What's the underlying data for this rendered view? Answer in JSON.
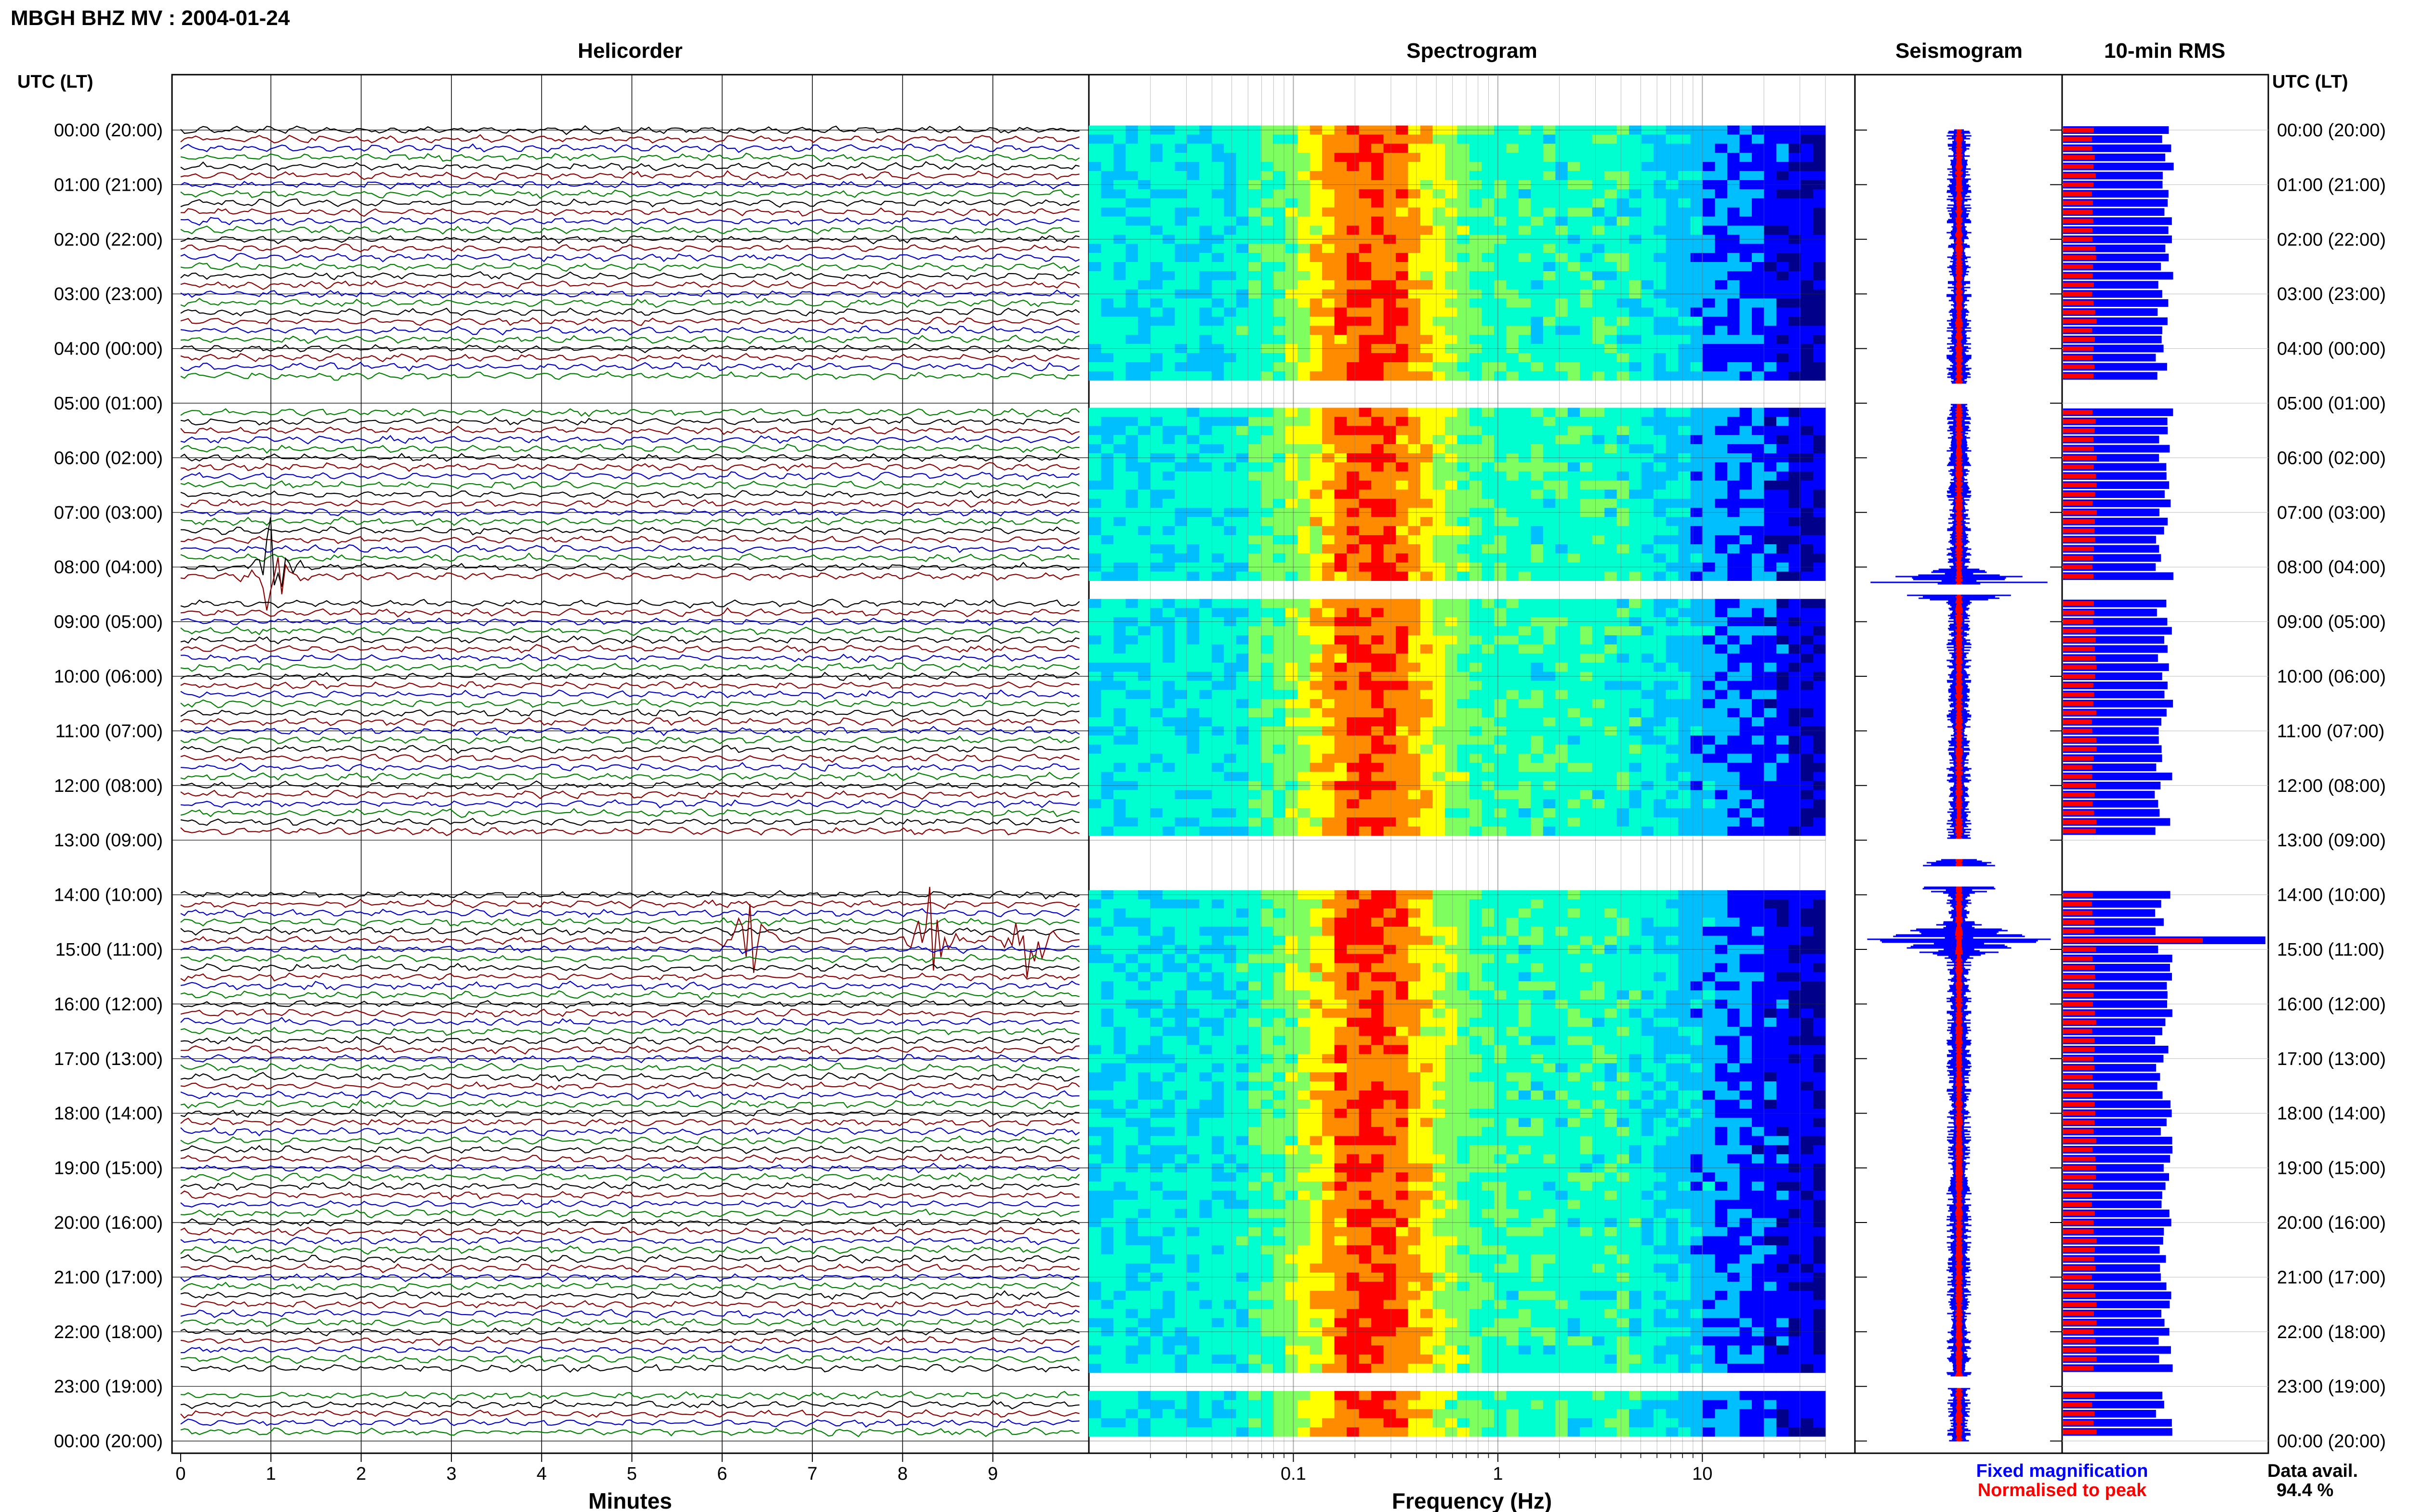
{
  "header": {
    "title": "MBGH BHZ MV : 2004-01-24",
    "utc_label_left": "UTC (LT)",
    "utc_label_right": "UTC (LT)"
  },
  "panels": {
    "helicorder": "Helicorder",
    "spectrogram": "Spectrogram",
    "seismogram": "Seismogram",
    "rms": "10-min RMS"
  },
  "legend": {
    "fixed": "Fixed magnification",
    "normalised": "Normalised to peak",
    "fixed_color": "#0000ff",
    "normalised_color": "#ff0000",
    "data_avail_label": "Data avail.",
    "data_avail_value": "94.4 %"
  },
  "chart_data": [
    {
      "type": "line",
      "title": "Helicorder",
      "xlabel": "Minutes",
      "ylabel": "UTC (LT)",
      "xlim": [
        0,
        10
      ],
      "x_ticks": [
        "0",
        "1",
        "2",
        "3",
        "4",
        "5",
        "6",
        "7",
        "8",
        "9"
      ],
      "y_ticks": [
        "00:00 (20:00)",
        "01:00 (21:00)",
        "02:00 (22:00)",
        "03:00 (23:00)",
        "04:00 (00:00)",
        "05:00 (01:00)",
        "06:00 (02:00)",
        "07:00 (03:00)",
        "08:00 (04:00)",
        "09:00 (05:00)",
        "10:00 (06:00)",
        "11:00 (07:00)",
        "12:00 (08:00)",
        "13:00 (09:00)",
        "14:00 (10:00)",
        "15:00 (11:00)",
        "16:00 (12:00)",
        "17:00 (13:00)",
        "18:00 (14:00)",
        "19:00 (15:00)",
        "20:00 (16:00)",
        "21:00 (17:00)",
        "22:00 (18:00)",
        "23:00 (19:00)",
        "00:00 (20:00)"
      ],
      "trace_colors": [
        "#000000",
        "#8b0000",
        "#0000cd",
        "#008000"
      ],
      "hours_span": 24,
      "trace_interval_minutes": 10,
      "grid": true,
      "data_gaps_utc": [
        [
          "04:40",
          "05:00"
        ],
        [
          "08:20",
          "08:30"
        ],
        [
          "13:00",
          "13:20"
        ],
        [
          "13:30",
          "13:50"
        ],
        [
          "22:50",
          "23:00"
        ]
      ],
      "events": [
        {
          "time_utc": "08:05",
          "minute": 1.0,
          "description": "large signal"
        },
        {
          "time_utc": "14:50",
          "minute": 6.3,
          "description": "large signal"
        },
        {
          "time_utc": "14:50",
          "minute": 8.3,
          "description": "large signal"
        },
        {
          "time_utc": "14:50",
          "minute": 9.4,
          "description": "burst"
        }
      ]
    },
    {
      "type": "heatmap",
      "title": "Spectrogram",
      "xlabel": "Frequency (Hz)",
      "x_scale": "log",
      "xlim": [
        0.01,
        50
      ],
      "x_ticks": [
        "0.1",
        "1",
        "10"
      ],
      "peak_band_hz": [
        0.15,
        0.4
      ],
      "colormap": [
        "#00008b",
        "#0000ff",
        "#00bfff",
        "#00ffd0",
        "#7fff5f",
        "#ffff00",
        "#ff8c00",
        "#ff0000"
      ]
    },
    {
      "type": "line",
      "title": "Seismogram",
      "note": "Fixed magnification (blue) and normalised to peak (red)",
      "peaks_utc": [
        "08:20",
        "13:40",
        "14:50"
      ]
    },
    {
      "type": "bar",
      "title": "10-min RMS",
      "series": [
        {
          "name": "Fixed magnification",
          "color": "#0000ff"
        },
        {
          "name": "Normalised to peak",
          "color": "#ff0000"
        }
      ],
      "peaks_utc": [
        "08:20",
        "13:40",
        "14:50"
      ]
    }
  ]
}
